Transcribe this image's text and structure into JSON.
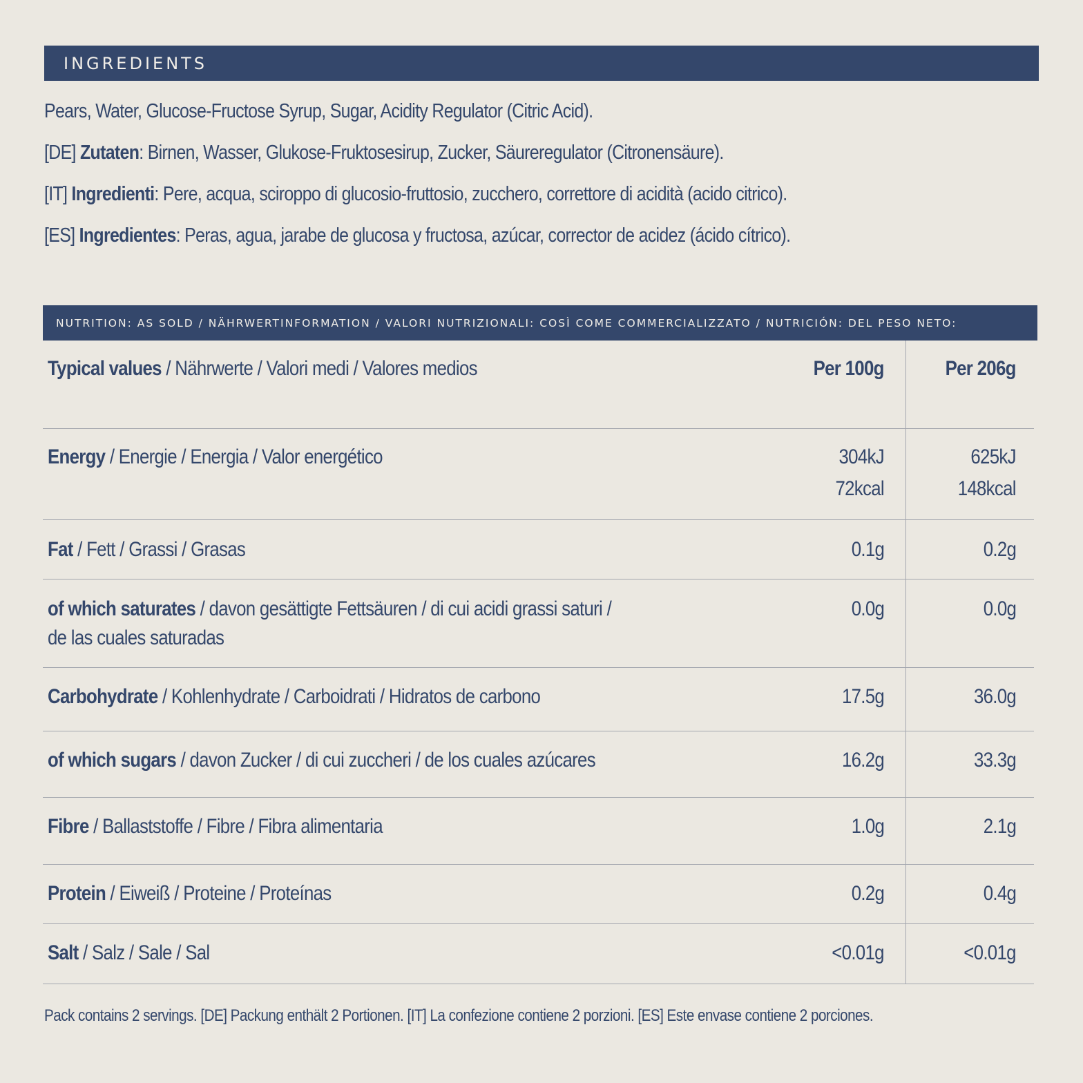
{
  "ingredients": {
    "heading": "INGREDIENTS",
    "en": "Pears, Water, Glucose-Fructose Syrup, Sugar, Acidity Regulator (Citric Acid).",
    "de": {
      "prefix": "[DE] ",
      "label": "Zutaten",
      "text": ": Birnen, Wasser, Glukose-Fruktosesirup, Zucker, Säureregulator (Citronensäure)."
    },
    "it": {
      "prefix": "[IT] ",
      "label": "Ingredienti",
      "text": ": Pere, acqua, sciroppo di glucosio-fruttosio, zucchero, correttore di acidità (acido citrico)."
    },
    "es": {
      "prefix": "[ES] ",
      "label": "Ingredientes",
      "text": ": Peras, agua, jarabe de glucosa y fructosa, azúcar, corrector de acidez (ácido cítrico)."
    }
  },
  "nutrition": {
    "heading": "NUTRITION: AS SOLD / NÄHRWERTINFORMATION / VALORI NUTRIZIONALI: COSÌ COME COMMERCIALIZZATO / NUTRICIÓN: DEL PESO NETO:",
    "header": {
      "bold": "Typical values",
      "rest": " / Nährwerte / Valori medi / Valores medios",
      "col1": "Per 100g",
      "col2": "Per 206g"
    },
    "rows": [
      {
        "bold": "Energy",
        "rest": " / Energie / Energia / Valor energético",
        "v1a": "304kJ",
        "v1b": "72kcal",
        "v2a": "625kJ",
        "v2b": "148kcal"
      },
      {
        "bold": "Fat",
        "rest": " / Fett / Grassi / Grasas",
        "v1": "0.1g",
        "v2": "0.2g"
      },
      {
        "bold": "of which saturates",
        "rest": " / davon gesättigte Fettsäuren / di cui acidi grassi saturi /",
        "rest2": "de las cuales saturadas",
        "v1": "0.0g",
        "v2": "0.0g"
      },
      {
        "bold": "Carbohydrate",
        "rest": " / Kohlenhydrate / Carboidrati / Hidratos de carbono",
        "v1": "17.5g",
        "v2": "36.0g"
      },
      {
        "bold": "of which sugars",
        "rest": " / davon Zucker / di cui zuccheri / de los cuales azúcares",
        "v1": "16.2g",
        "v2": "33.3g"
      },
      {
        "bold": "Fibre",
        "rest": " / Ballaststoffe / Fibre / Fibra alimentaria",
        "v1": "1.0g",
        "v2": "2.1g"
      },
      {
        "bold": "Protein",
        "rest": " / Eiweiß / Proteine / Proteínas",
        "v1": "0.2g",
        "v2": "0.4g"
      },
      {
        "bold": "Salt",
        "rest": " / Salz / Sale / Sal",
        "v1": "<0.01g",
        "v2": "<0.01g"
      }
    ]
  },
  "footer": "Pack contains 2 servings. [DE] Packung enthält 2 Portionen. [IT] La confezione contiene 2 porzioni. [ES] Este envase contiene 2 porciones."
}
